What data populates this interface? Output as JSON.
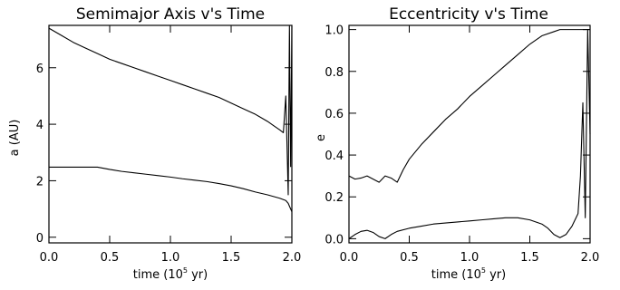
{
  "chart_data": [
    {
      "type": "line",
      "title": "Semimajor Axis v's Time",
      "xlabel_main": "time (10",
      "xlabel_sup": "5",
      "xlabel_end": " yr)",
      "ylabel": "a (AU)",
      "xlim": [
        0.0,
        2.0
      ],
      "ylim": [
        -0.2,
        7.5
      ],
      "xticks": [
        0.0,
        0.5,
        1.0,
        1.5,
        2.0
      ],
      "xtick_labels": [
        "0.0",
        "0.5",
        "1.0",
        "1.5",
        "2.0"
      ],
      "yticks": [
        0,
        2,
        4,
        6
      ],
      "ytick_labels": [
        "0",
        "2",
        "4",
        "6"
      ],
      "series": [
        {
          "x": [
            0.0,
            0.1,
            0.2,
            0.3,
            0.4,
            0.5,
            0.6,
            0.7,
            0.8,
            0.9,
            1.0,
            1.1,
            1.2,
            1.3,
            1.4,
            1.5,
            1.6,
            1.7,
            1.8,
            1.85,
            1.9,
            1.93,
            1.95,
            1.97,
            1.98,
            1.99,
            2.0
          ],
          "y": [
            7.4,
            7.15,
            6.9,
            6.7,
            6.5,
            6.3,
            6.15,
            6.0,
            5.85,
            5.7,
            5.55,
            5.4,
            5.25,
            5.1,
            4.95,
            4.75,
            4.55,
            4.35,
            4.1,
            3.95,
            3.8,
            3.7,
            5.0,
            1.5,
            7.5,
            2.5,
            7.5
          ]
        },
        {
          "x": [
            0.0,
            0.1,
            0.2,
            0.3,
            0.4,
            0.5,
            0.6,
            0.7,
            0.8,
            0.9,
            1.0,
            1.1,
            1.2,
            1.3,
            1.4,
            1.5,
            1.6,
            1.7,
            1.8,
            1.9,
            1.95,
            1.97,
            1.98,
            2.0
          ],
          "y": [
            2.48,
            2.48,
            2.48,
            2.48,
            2.48,
            2.4,
            2.33,
            2.28,
            2.23,
            2.18,
            2.13,
            2.07,
            2.02,
            1.97,
            1.9,
            1.82,
            1.72,
            1.6,
            1.5,
            1.38,
            1.3,
            1.2,
            1.1,
            0.9
          ]
        }
      ]
    },
    {
      "type": "line",
      "title": "Eccentricity v's Time",
      "xlabel_main": "time (10",
      "xlabel_sup": "5",
      "xlabel_end": " yr)",
      "ylabel": "e",
      "xlim": [
        0.0,
        2.0
      ],
      "ylim": [
        -0.02,
        1.02
      ],
      "xticks": [
        0.0,
        0.5,
        1.0,
        1.5,
        2.0
      ],
      "xtick_labels": [
        "0.0",
        "0.5",
        "1.0",
        "1.5",
        "2.0"
      ],
      "yticks": [
        0.0,
        0.2,
        0.4,
        0.6,
        0.8,
        1.0
      ],
      "ytick_labels": [
        "0.0",
        "0.2",
        "0.4",
        "0.6",
        "0.8",
        "1.0"
      ],
      "series": [
        {
          "x": [
            0.0,
            0.05,
            0.1,
            0.15,
            0.2,
            0.25,
            0.3,
            0.35,
            0.4,
            0.45,
            0.5,
            0.6,
            0.7,
            0.8,
            0.9,
            1.0,
            1.1,
            1.2,
            1.3,
            1.4,
            1.5,
            1.6,
            1.7,
            1.75,
            1.8,
            1.85,
            1.9,
            2.0
          ],
          "y": [
            0.3,
            0.285,
            0.29,
            0.3,
            0.285,
            0.27,
            0.3,
            0.29,
            0.27,
            0.33,
            0.38,
            0.45,
            0.51,
            0.57,
            0.62,
            0.68,
            0.73,
            0.78,
            0.83,
            0.88,
            0.93,
            0.97,
            0.99,
            1.0,
            1.0,
            1.0,
            1.0,
            1.0
          ]
        },
        {
          "x": [
            0.0,
            0.05,
            0.1,
            0.15,
            0.2,
            0.25,
            0.3,
            0.35,
            0.4,
            0.5,
            0.6,
            0.7,
            0.8,
            0.9,
            1.0,
            1.1,
            1.2,
            1.3,
            1.4,
            1.5,
            1.6,
            1.65,
            1.7,
            1.75,
            1.8,
            1.85,
            1.9,
            1.92,
            1.94,
            1.96,
            1.98,
            2.0
          ],
          "y": [
            0.0,
            0.02,
            0.035,
            0.04,
            0.03,
            0.01,
            0.0,
            0.02,
            0.035,
            0.05,
            0.06,
            0.07,
            0.075,
            0.08,
            0.085,
            0.09,
            0.095,
            0.1,
            0.1,
            0.09,
            0.07,
            0.05,
            0.02,
            0.005,
            0.02,
            0.06,
            0.12,
            0.3,
            0.65,
            0.1,
            1.0,
            0.5
          ]
        }
      ]
    }
  ]
}
